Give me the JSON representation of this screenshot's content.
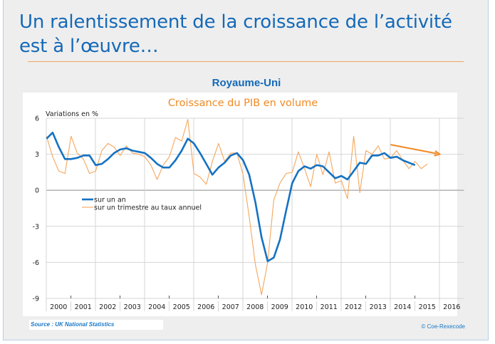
{
  "slide": {
    "title": "Un ralentissement de la croissance de l’activité est à l’œuvre…",
    "country": "Royaume-Uni",
    "source": "Source : UK National Statistics",
    "copyright": "© Coe-Rexecode",
    "colors": {
      "title": "#1469b8",
      "accent_orange": "#f08a24",
      "series_annual": "#1572c2",
      "series_quarterly": "#f5a75c"
    }
  },
  "chart_data": {
    "type": "line",
    "title": "Croissance du PIB en volume",
    "ylabel": "Variations en %",
    "xlabel": "",
    "ylim": [
      -9,
      6
    ],
    "yticks": [
      6,
      3,
      0,
      -3,
      -6,
      -9
    ],
    "ytick_labels": [
      "6",
      "3",
      "0",
      "-3",
      "-6",
      "-9"
    ],
    "x_categories": [
      "2000",
      "2001",
      "2002",
      "2003",
      "2004",
      "2005",
      "2006",
      "2007",
      "2008",
      "2009",
      "2010",
      "2011",
      "2012",
      "2013",
      "2014",
      "2015",
      "2016"
    ],
    "x_unit": "quarter",
    "grid": true,
    "legend": {
      "placement": "center-left"
    },
    "annotations": [
      {
        "type": "arrow",
        "description": "downward trend arrow",
        "from_quarter": "2014Q1",
        "from_value": 3.8,
        "to_quarter": "2016Q1",
        "to_value": 3.0
      }
    ],
    "series": [
      {
        "name": "sur un an",
        "start": "2000Q1",
        "values": [
          4.3,
          4.8,
          3.6,
          2.6,
          2.6,
          2.7,
          2.9,
          2.9,
          2.1,
          2.2,
          2.6,
          3.1,
          3.4,
          3.5,
          3.3,
          3.2,
          3.1,
          2.7,
          2.2,
          1.9,
          1.9,
          2.5,
          3.3,
          4.3,
          3.9,
          3.1,
          2.2,
          1.3,
          1.9,
          2.3,
          2.9,
          3.1,
          2.5,
          1.3,
          -1.0,
          -3.9,
          -5.9,
          -5.6,
          -4.1,
          -1.7,
          0.6,
          1.6,
          2.0,
          1.8,
          2.1,
          2.0,
          1.5,
          1.0,
          1.2,
          0.9,
          1.6,
          2.3,
          2.2,
          2.9,
          2.9,
          3.1,
          2.7,
          2.8,
          2.5,
          2.3,
          2.1
        ]
      },
      {
        "name": "sur un trimestre au taux annuel",
        "start": "2000Q1",
        "values": [
          4.5,
          2.8,
          1.6,
          1.4,
          4.5,
          3.1,
          2.6,
          1.4,
          1.6,
          3.3,
          3.9,
          3.6,
          2.9,
          3.7,
          3.1,
          3.0,
          2.8,
          2.1,
          0.9,
          2.1,
          2.8,
          4.4,
          4.1,
          5.9,
          1.4,
          1.1,
          0.5,
          2.4,
          3.9,
          2.4,
          3.1,
          3.1,
          1.3,
          -2.2,
          -6.2,
          -8.7,
          -6.0,
          -0.8,
          0.6,
          1.4,
          1.5,
          3.2,
          1.8,
          0.3,
          3.0,
          1.3,
          3.2,
          0.6,
          0.8,
          -0.7,
          4.5,
          -0.2,
          3.3,
          3.0,
          3.7,
          2.6,
          2.7,
          3.3,
          2.5,
          1.8,
          2.4,
          1.8,
          2.2
        ]
      }
    ]
  }
}
